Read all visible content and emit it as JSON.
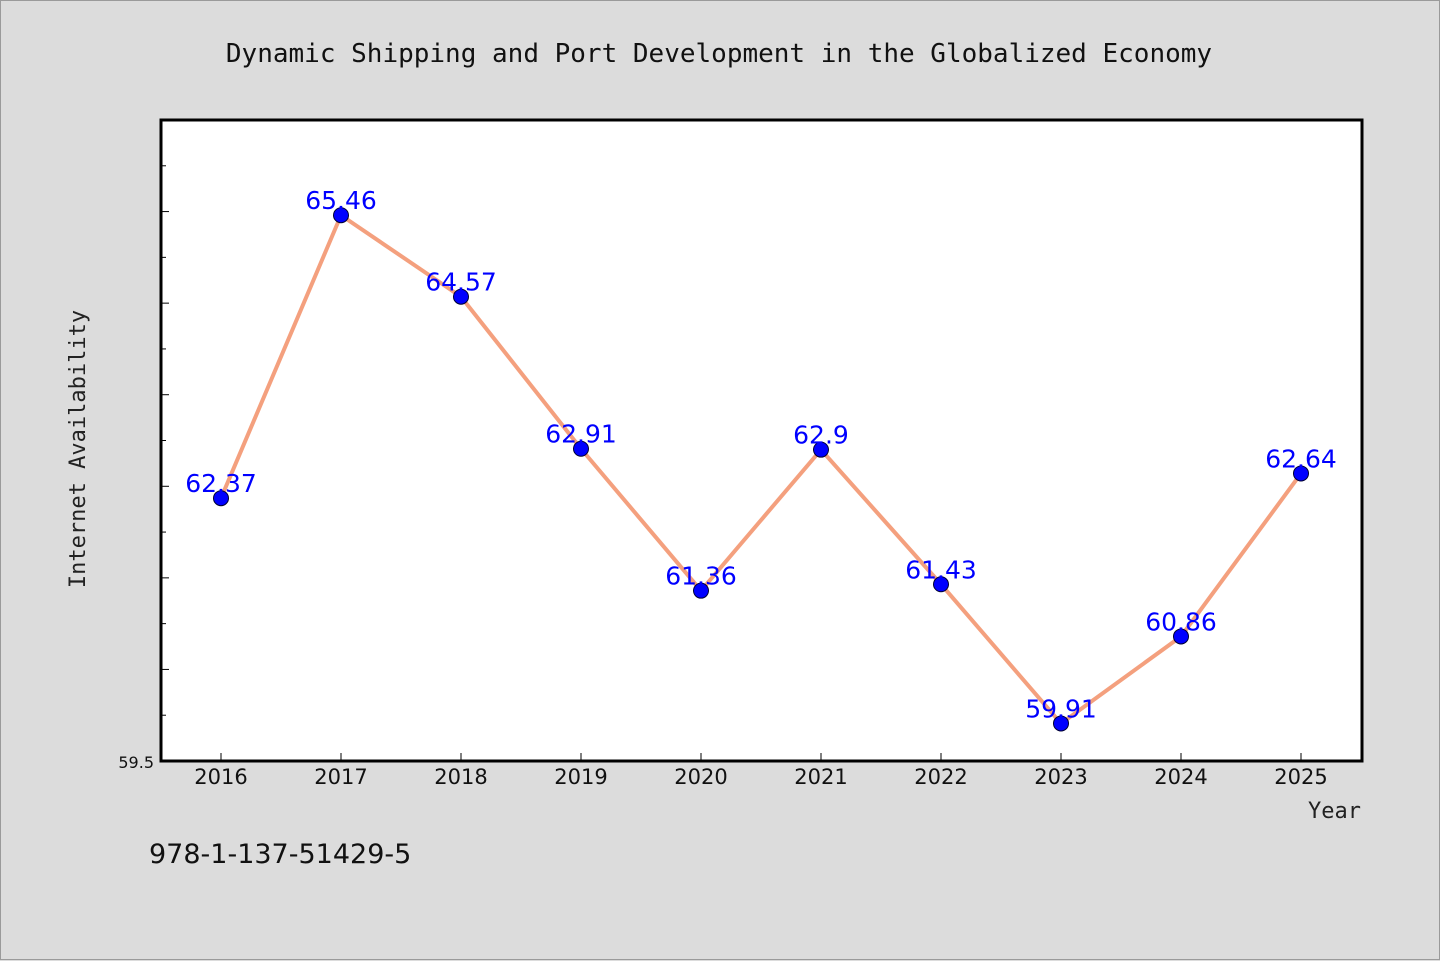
{
  "colors": {
    "background": "#dcdcdc",
    "plot_background": "#ffffff",
    "line": "#f4a07e",
    "marker": "#0000ff",
    "data_label": "#0000ff",
    "axis": "#000000"
  },
  "footer": {
    "isbn": "978-1-137-51429-5"
  },
  "chart_data": {
    "type": "line",
    "title": "Dynamic Shipping and Port Development in the Globalized Economy",
    "xlabel": "Year",
    "ylabel": "Internet Availability",
    "categories": [
      "2016",
      "2017",
      "2018",
      "2019",
      "2020",
      "2021",
      "2022",
      "2023",
      "2024",
      "2025"
    ],
    "series": [
      {
        "values": [
          62.37,
          65.46,
          64.57,
          62.91,
          61.36,
          62.9,
          61.43,
          59.91,
          60.86,
          62.64
        ],
        "labels": [
          "62.37",
          "65.46",
          "64.57",
          "62.91",
          "61.36",
          "62.9",
          "61.43",
          "59.91",
          "60.86",
          "62.64"
        ]
      }
    ],
    "ylim": [
      59.5,
      66.5
    ],
    "y_tick_label": "59.5",
    "y_minor_tick_step": 0.5,
    "grid": false,
    "legend": "none"
  }
}
